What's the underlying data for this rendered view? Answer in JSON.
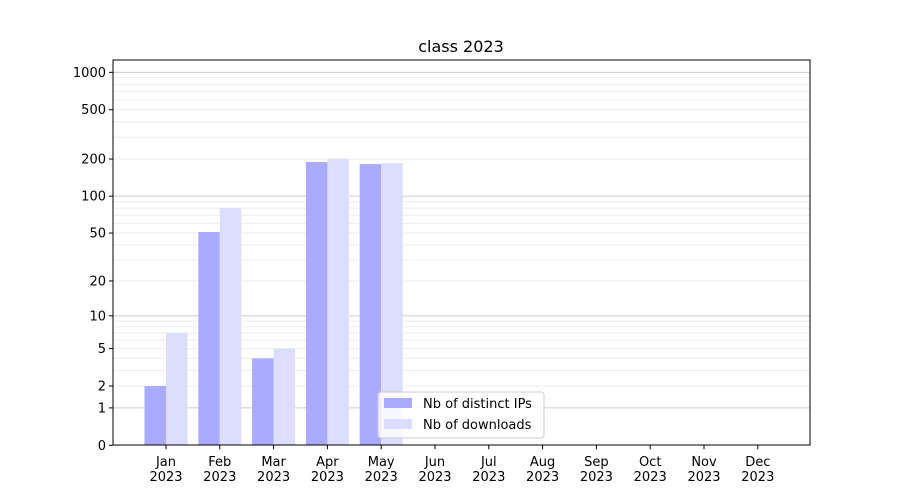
{
  "chart_data": {
    "type": "bar",
    "title": "class 2023",
    "xlabel": "",
    "ylabel": "",
    "yscale": "symlog (log10(1+y))",
    "ylim": [
      0,
      1200
    ],
    "yticks": [
      0,
      1,
      2,
      5,
      10,
      20,
      50,
      100,
      200,
      500,
      1000
    ],
    "categories": [
      "Jan\n2023",
      "Feb\n2023",
      "Mar\n2023",
      "Apr\n2023",
      "May\n2023",
      "Jun\n2023",
      "Jul\n2023",
      "Aug\n2023",
      "Sep\n2023",
      "Oct\n2023",
      "Nov\n2023",
      "Dec\n2023"
    ],
    "series": [
      {
        "name": "Nb of distinct IPs",
        "color": "#aaaaff",
        "values": [
          2,
          51,
          4,
          189,
          182,
          0,
          0,
          0,
          0,
          0,
          0,
          0
        ]
      },
      {
        "name": "Nb of downloads",
        "color": "#ddddff",
        "values": [
          7,
          80,
          5,
          199,
          185,
          0,
          0,
          0,
          0,
          0,
          0,
          0
        ]
      }
    ],
    "grid": true,
    "legend": "lower-center"
  }
}
